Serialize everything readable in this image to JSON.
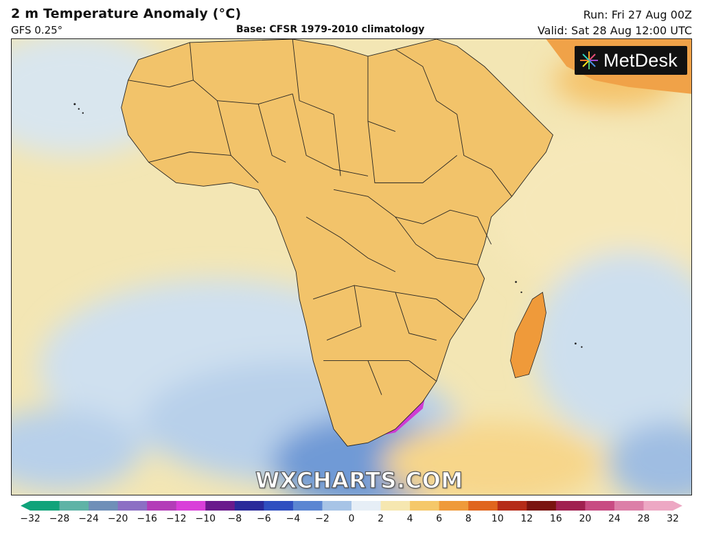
{
  "header": {
    "title": "2 m Temperature Anomaly (°C)",
    "model": "GFS 0.25°",
    "base": "Base: CFSR 1979-2010 climatology",
    "run": "Run: Fri 27 Aug 00Z",
    "valid": "Valid: Sat 28 Aug 12:00 UTC"
  },
  "logo": {
    "text": "MetDesk"
  },
  "watermark": "WXCHARTS.COM",
  "map": {
    "region": "Africa",
    "variable": "2 m temperature anomaly",
    "colors": {
      "ocean_neutral": "#f3e6b4",
      "cold_light": "#cfe0ef",
      "cold_mid": "#7fa6d8",
      "cold_strong": "#3a55b8",
      "cold_extreme": "#cc33cc",
      "warm_light": "#f5c36b",
      "warm_mid": "#e87a2a",
      "warm_strong": "#b8341c",
      "border": "#222222"
    }
  },
  "legend": {
    "labels": [
      "−32",
      "−28",
      "−24",
      "−20",
      "−16",
      "−12",
      "−10",
      "−8",
      "−6",
      "−4",
      "−2",
      "0",
      "2",
      "4",
      "6",
      "8",
      "10",
      "12",
      "16",
      "20",
      "24",
      "28",
      "32"
    ],
    "colors": [
      "#10a37a",
      "#5fb3a6",
      "#6f8fb8",
      "#8c6fc4",
      "#b33db8",
      "#d93fd9",
      "#6a1a8c",
      "#2a2a9a",
      "#2f4fc0",
      "#5b86d2",
      "#a7c4e6",
      "#e6eef6",
      "#f6e7b0",
      "#f5c86a",
      "#ef9a3a",
      "#e0651e",
      "#b52b18",
      "#7a1410",
      "#a02050",
      "#c84b82",
      "#dc7fa8",
      "#eda8c4"
    ]
  }
}
